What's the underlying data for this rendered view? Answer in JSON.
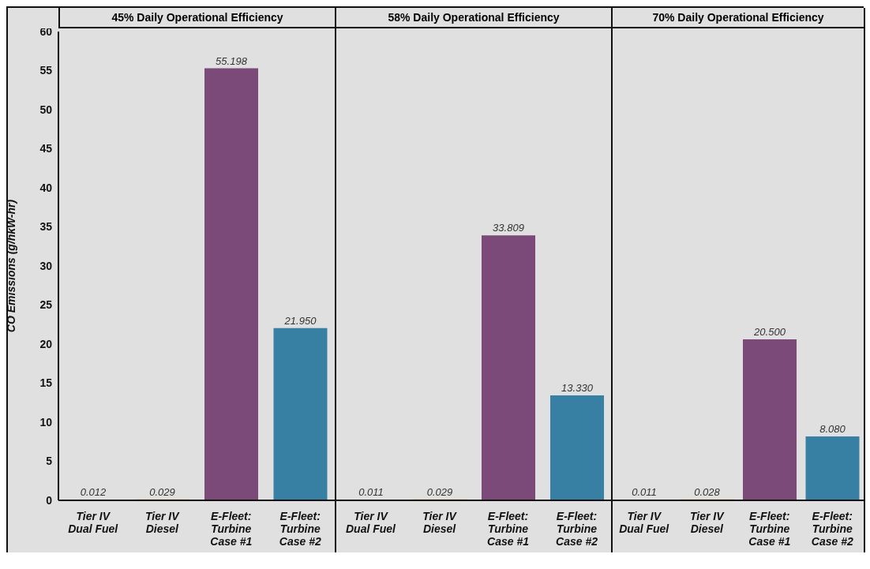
{
  "chart_data": [
    {
      "type": "bar",
      "title": "45% Daily Operational Efficiency",
      "ylabel": "CO Emissions (g/hkW-hr)",
      "categories": [
        "Tier IV Dual Fuel",
        "Tier IV Diesel",
        "E-Fleet: Turbine Case #1",
        "E-Fleet: Turbine Case #2"
      ],
      "values": [
        0.012,
        0.029,
        55.198,
        21.95
      ],
      "colors": [
        "#e0283a",
        "#f2b531",
        "#7b4a78",
        "#3780a3"
      ],
      "value_labels": [
        "0.012",
        "0.029",
        "55.198",
        "21.950"
      ],
      "ylim": [
        0,
        60
      ],
      "yticks": [
        0,
        5,
        10,
        15,
        20,
        25,
        30,
        35,
        40,
        45,
        50,
        55,
        60
      ]
    },
    {
      "type": "bar",
      "title": "58% Daily Operational Efficiency",
      "categories": [
        "Tier IV Dual Fuel",
        "Tier IV Diesel",
        "E-Fleet: Turbine Case #1",
        "E-Fleet: Turbine Case #2"
      ],
      "values": [
        0.011,
        0.029,
        33.809,
        13.33
      ],
      "colors": [
        "#e0283a",
        "#f2b531",
        "#7b4a78",
        "#3780a3"
      ],
      "value_labels": [
        "0.011",
        "0.029",
        "33.809",
        "13.330"
      ],
      "ylim": [
        0,
        60
      ],
      "yticks": [
        0,
        5,
        10,
        15,
        20,
        25,
        30,
        35,
        40,
        45,
        50,
        55,
        60
      ],
      "tick_labels": "x"
    },
    {
      "type": "bar",
      "title": "70% Daily Operational Efficiency",
      "categories": [
        "Tier IV Dual Fuel",
        "Tier IV Diesel",
        "E-Fleet: Turbine Case #1",
        "E-Fleet: Turbine Case #2"
      ],
      "values": [
        0.011,
        0.028,
        20.5,
        8.08
      ],
      "colors": [
        "#e0283a",
        "#f2b531",
        "#7b4a78",
        "#3780a3"
      ],
      "value_labels": [
        "0.011",
        "0.028",
        "20.500",
        "8.080"
      ],
      "ylim": [
        0,
        60
      ],
      "yticks": [
        0,
        5,
        10,
        15,
        20,
        25,
        30,
        35,
        40,
        45,
        50,
        55,
        60
      ],
      "tick_labels": "x"
    }
  ]
}
